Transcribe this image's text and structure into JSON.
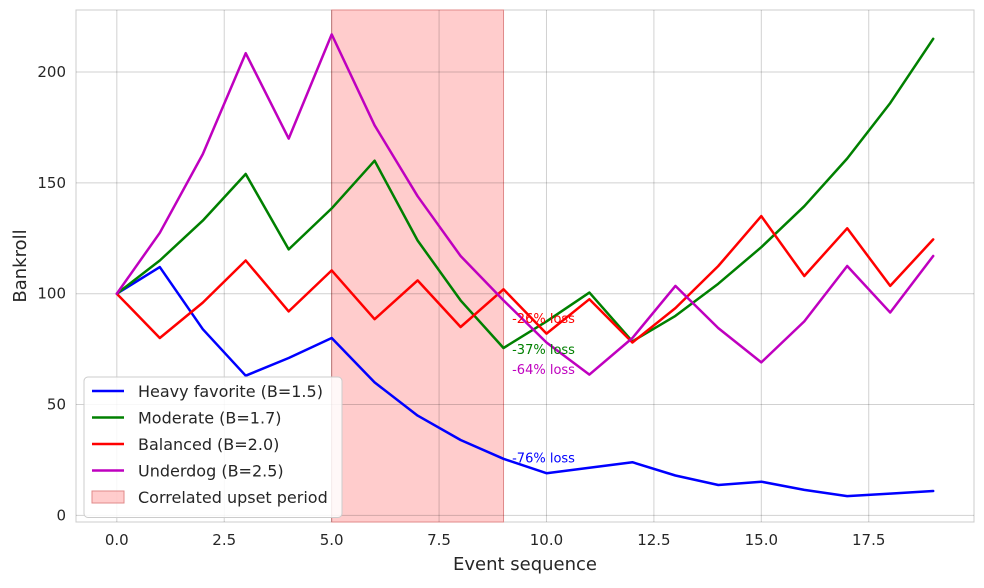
{
  "chart_data": {
    "type": "line",
    "xlabel": "Event sequence",
    "ylabel": "Bankroll",
    "xlim": [
      -0.95,
      19.95
    ],
    "ylim": [
      -3,
      228
    ],
    "grid": true,
    "legend_position": "lower-left",
    "x_ticks": [
      0.0,
      2.5,
      5.0,
      7.5,
      10.0,
      12.5,
      15.0,
      17.5
    ],
    "x_tick_labels": [
      "0.0",
      "2.5",
      "5.0",
      "7.5",
      "10.0",
      "12.5",
      "15.0",
      "17.5"
    ],
    "y_ticks": [
      0,
      50,
      100,
      150,
      200
    ],
    "y_tick_labels": [
      "0",
      "50",
      "100",
      "150",
      "200"
    ],
    "x": [
      0,
      1,
      2,
      3,
      4,
      5,
      6,
      7,
      8,
      9,
      10,
      11,
      12,
      13,
      14,
      15,
      16,
      17,
      18,
      19
    ],
    "series": [
      {
        "name": "Heavy favorite (B=1.5)",
        "color": "#0000ff",
        "values": [
          100,
          112,
          84,
          63,
          71,
          80,
          60,
          45,
          34,
          25.5,
          19,
          21.5,
          24,
          18,
          13.7,
          15.2,
          11.5,
          8.7,
          9.8,
          11
        ]
      },
      {
        "name": "Moderate (B=1.7)",
        "color": "#008000",
        "values": [
          100,
          115,
          133,
          154,
          120,
          138.5,
          160,
          124,
          97,
          75.5,
          87.5,
          100.5,
          78.5,
          90,
          104.5,
          121,
          139.5,
          161,
          186,
          215
        ]
      },
      {
        "name": "Balanced (B=2.0)",
        "color": "#ff0000",
        "values": [
          100,
          80,
          96,
          115,
          92,
          110.5,
          88.5,
          106,
          85,
          102,
          82,
          97.5,
          78,
          93.5,
          112.5,
          135,
          108,
          129.5,
          103.5,
          124.5
        ]
      },
      {
        "name": "Underdog (B=2.5)",
        "color": "#bf00bf",
        "values": [
          100,
          127.5,
          163,
          208.5,
          170,
          217,
          176,
          144,
          117,
          97,
          78,
          63.5,
          80,
          103.5,
          84.5,
          69,
          87.5,
          112.5,
          91.5,
          117
        ]
      }
    ],
    "shaded_region": {
      "name": "Correlated upset period",
      "x_start": 5,
      "x_end": 9,
      "color": "#ff9999"
    },
    "annotations": [
      {
        "text": "-26% loss",
        "x": 9.2,
        "y": 89,
        "color": "#ff0000"
      },
      {
        "text": "-37% loss",
        "x": 9.2,
        "y": 75,
        "color": "#008000"
      },
      {
        "text": "-64% loss",
        "x": 9.2,
        "y": 66,
        "color": "#bf00bf"
      },
      {
        "text": "-76% loss",
        "x": 9.2,
        "y": 26,
        "color": "#0000ff"
      }
    ]
  }
}
